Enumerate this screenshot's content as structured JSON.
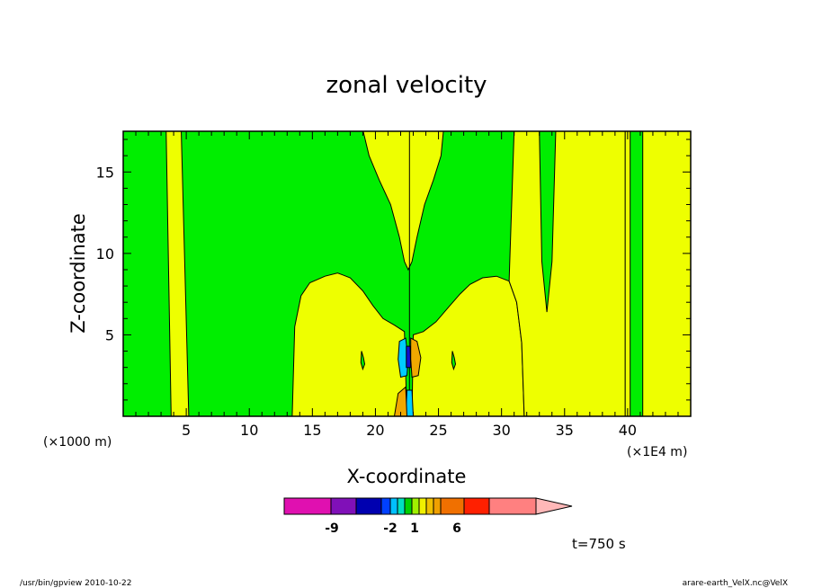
{
  "chart_data": {
    "type": "heatmap",
    "title": "zonal velocity",
    "xlabel": "X-coordinate",
    "ylabel": "Z-coordinate",
    "x_unit": "(×1000 m)",
    "x_scale_note": "(×1E4 m)",
    "xlim": [
      0,
      45
    ],
    "ylim": [
      0,
      17.5
    ],
    "x_ticks": [
      5,
      10,
      15,
      20,
      25,
      30,
      35,
      40
    ],
    "y_ticks": [
      5,
      10,
      15
    ],
    "colorbar": {
      "colors": [
        "#e010b0",
        "#8010b8",
        "#0000b0",
        "#0040ff",
        "#00c0ff",
        "#00e0c0",
        "#00d000",
        "#a0f000",
        "#f0f000",
        "#f0c000",
        "#f0a000",
        "#f07000",
        "#ff2000",
        "#ff8080",
        "#ffb8b8"
      ],
      "tick_labels": [
        "-9",
        "-2",
        "1",
        "6"
      ]
    },
    "time_label": "t=750 s",
    "colors": {
      "green": "#00ee00",
      "yellow": "#eeff00",
      "cyan": "#00ccff",
      "orange": "#f0a800",
      "blue": "#1010d0",
      "purple": "#8010b8"
    }
  },
  "footer": {
    "left": "/usr/bin/gpview   2010-10-22",
    "right": "arare-earth_VelX.nc@VelX"
  }
}
